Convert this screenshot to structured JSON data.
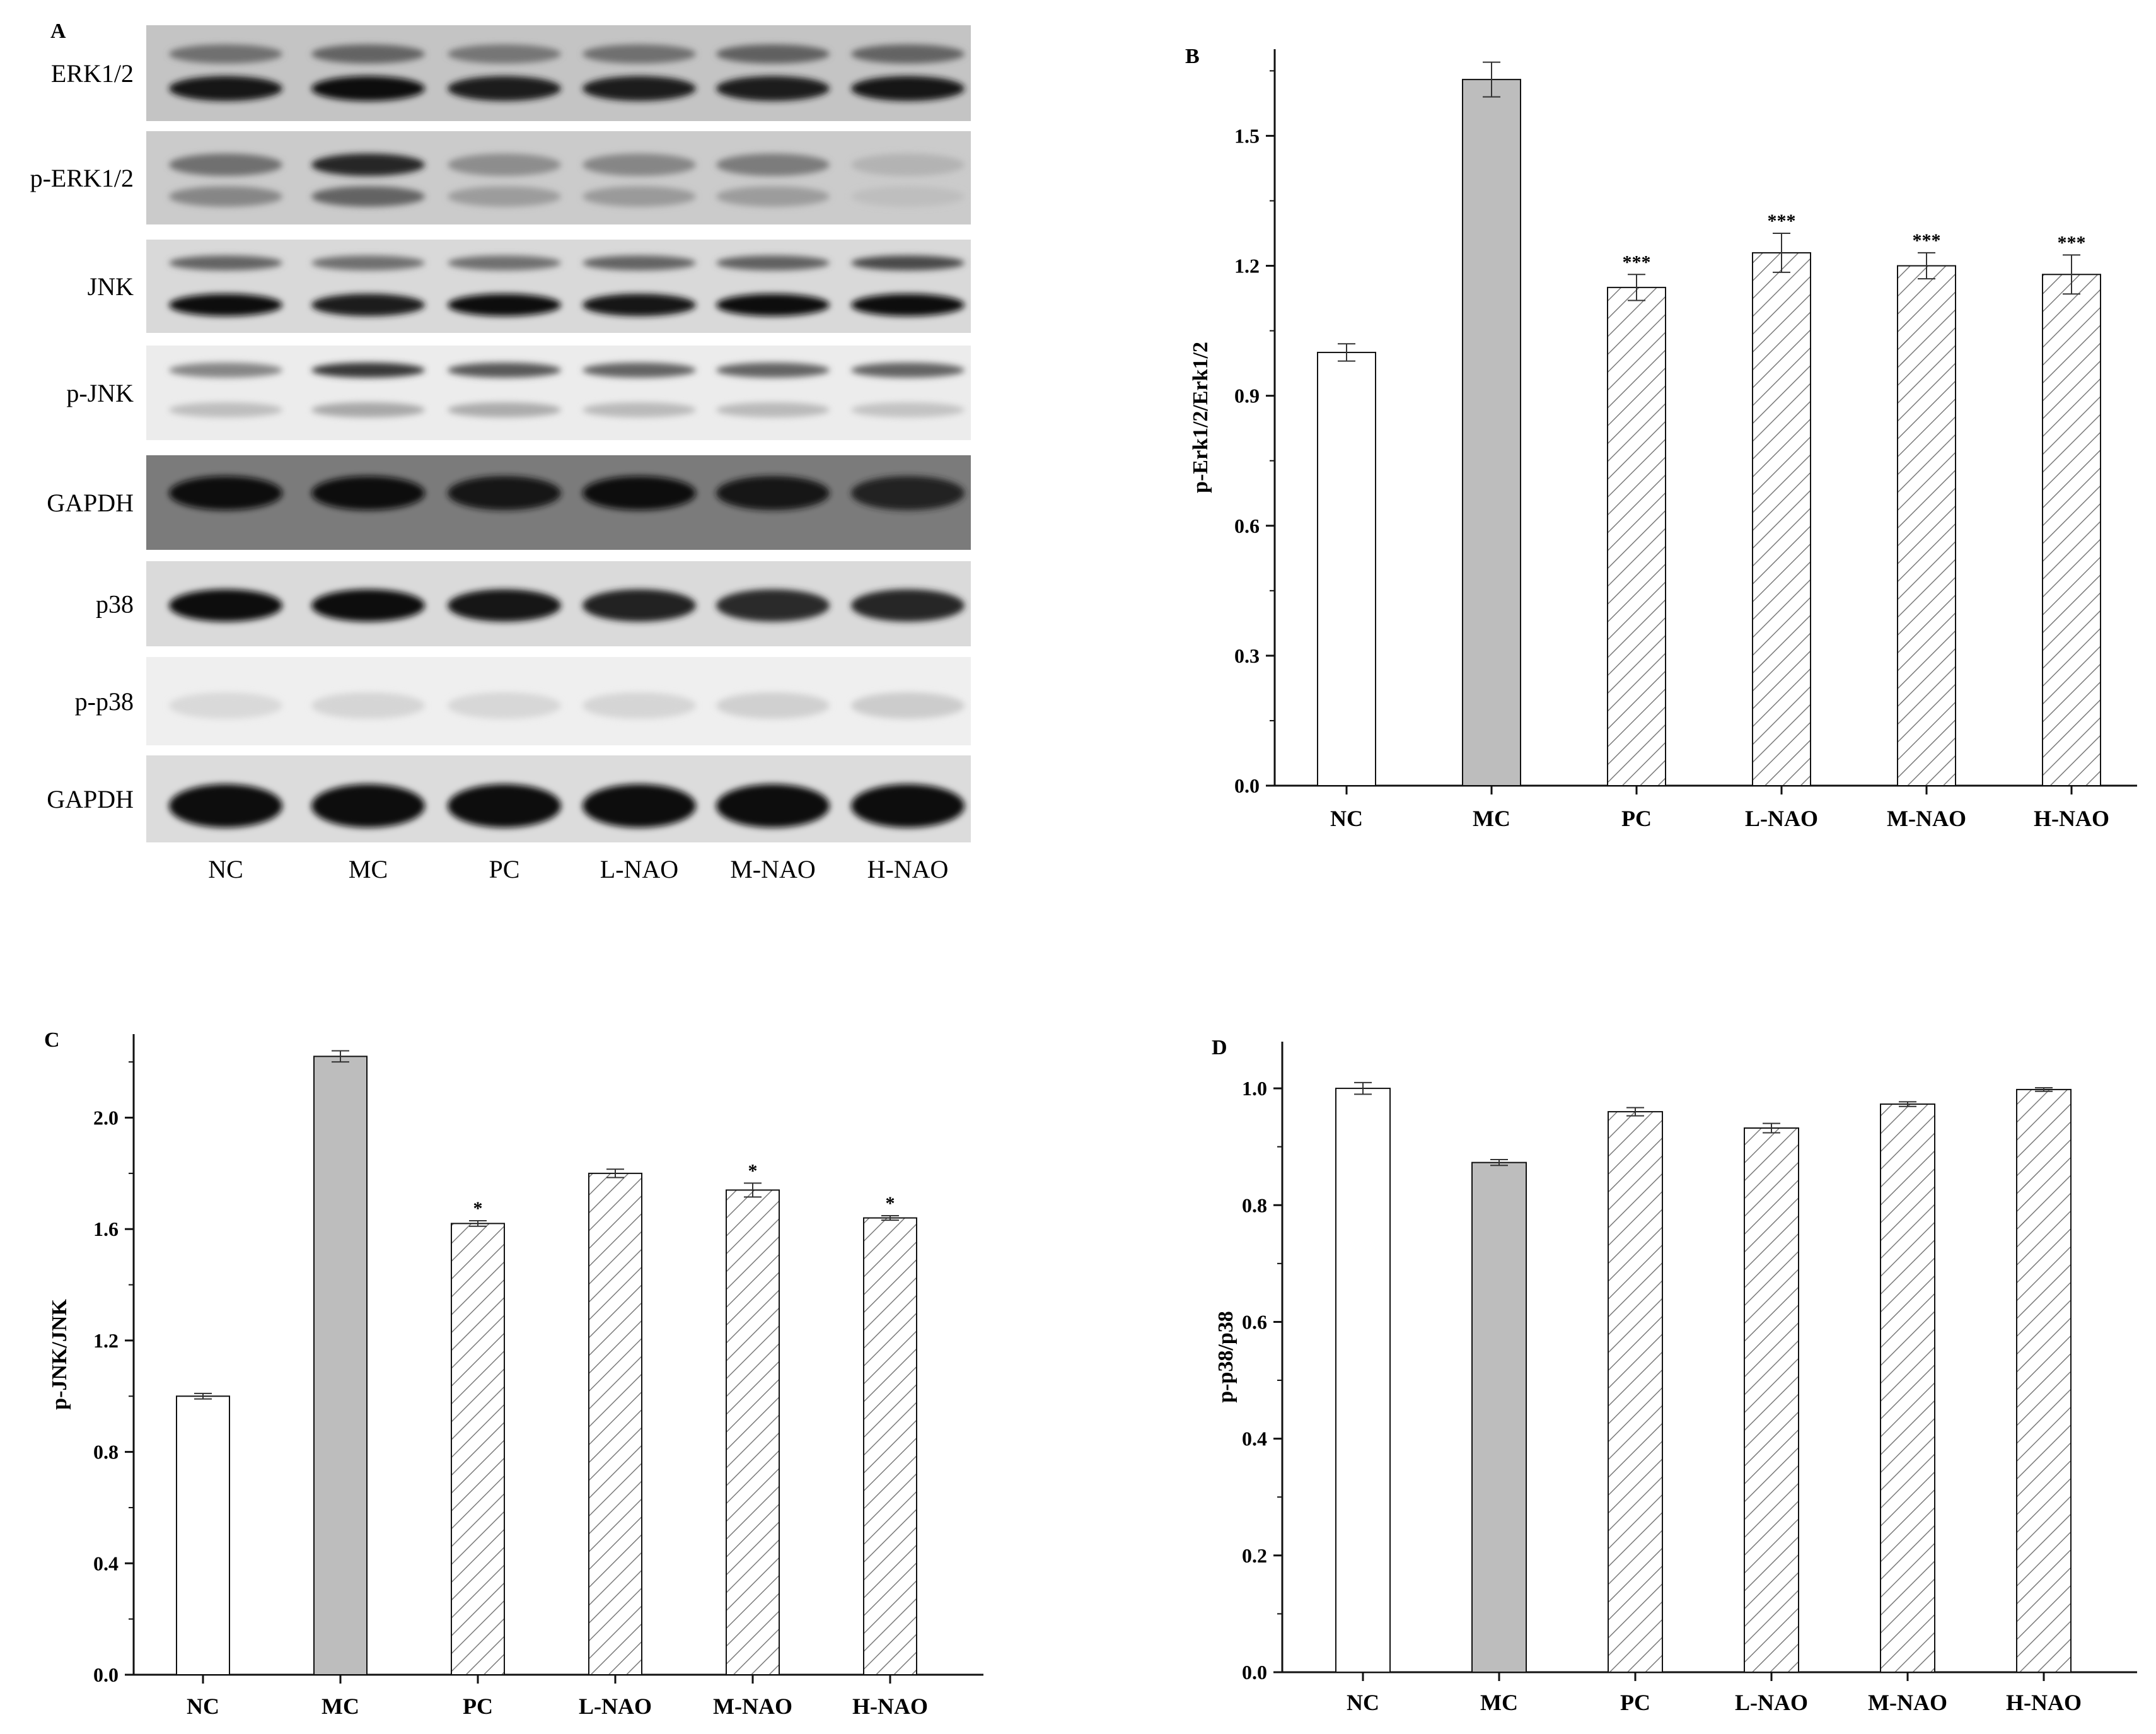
{
  "panel_a": {
    "letter": "A",
    "rows": [
      {
        "label": "ERK1/2",
        "bg": "#c4c4c4",
        "bands": [
          {
            "y": 0.3,
            "h": 0.2,
            "dark": [
              0.55,
              0.6,
              0.52,
              0.55,
              0.62,
              0.6
            ]
          },
          {
            "y": 0.66,
            "h": 0.26,
            "dark": [
              0.95,
              0.97,
              0.93,
              0.93,
              0.93,
              0.95
            ]
          }
        ]
      },
      {
        "label": "p-ERK1/2",
        "bg": "#cbcbcb",
        "bands": [
          {
            "y": 0.36,
            "h": 0.24,
            "dark": [
              0.55,
              0.88,
              0.42,
              0.45,
              0.5,
              0.25
            ]
          },
          {
            "y": 0.7,
            "h": 0.22,
            "dark": [
              0.45,
              0.6,
              0.35,
              0.36,
              0.35,
              0.2
            ]
          }
        ]
      },
      {
        "label": "JNK",
        "bg": "#d9d9d9",
        "bands": [
          {
            "y": 0.25,
            "h": 0.16,
            "dark": [
              0.6,
              0.55,
              0.55,
              0.6,
              0.62,
              0.72
            ]
          },
          {
            "y": 0.7,
            "h": 0.24,
            "dark": [
              0.97,
              0.93,
              0.97,
              0.95,
              0.97,
              0.98
            ]
          }
        ]
      },
      {
        "label": "p-JNK",
        "bg": "#ececec",
        "bands": [
          {
            "y": 0.26,
            "h": 0.16,
            "dark": [
              0.45,
              0.8,
              0.65,
              0.6,
              0.6,
              0.6
            ]
          },
          {
            "y": 0.68,
            "h": 0.16,
            "dark": [
              0.2,
              0.3,
              0.28,
              0.22,
              0.22,
              0.18
            ]
          }
        ]
      },
      {
        "label": "GAPDH",
        "bg": "#7b7b7b",
        "bands": [
          {
            "y": 0.4,
            "h": 0.36,
            "dark": [
              1.0,
              1.0,
              0.95,
              0.97,
              0.95,
              0.9
            ]
          }
        ]
      },
      {
        "label": "p38",
        "bg": "#dadada",
        "bands": [
          {
            "y": 0.52,
            "h": 0.38,
            "dark": [
              1.0,
              1.0,
              0.95,
              0.9,
              0.85,
              0.88
            ]
          }
        ]
      },
      {
        "label": "p-p38",
        "bg": "#efefef",
        "bands": [
          {
            "y": 0.55,
            "h": 0.3,
            "dark": [
              0.08,
              0.1,
              0.09,
              0.1,
              0.12,
              0.14
            ]
          }
        ]
      },
      {
        "label": "GAPDH",
        "bg": "#dcdcdc",
        "bands": [
          {
            "y": 0.58,
            "h": 0.5,
            "dark": [
              1.0,
              1.0,
              1.0,
              1.0,
              1.0,
              1.0
            ]
          }
        ]
      }
    ],
    "lanes": [
      "NC",
      "MC",
      "PC",
      "L-NAO",
      "M-NAO",
      "H-NAO"
    ]
  },
  "chart_data": [
    {
      "type": "bar",
      "panel": "B",
      "categories": [
        "NC",
        "MC",
        "PC",
        "L-NAO",
        "M-NAO",
        "H-NAO"
      ],
      "values": [
        1.0,
        1.63,
        1.15,
        1.23,
        1.2,
        1.18
      ],
      "errors": [
        0.02,
        0.04,
        0.03,
        0.045,
        0.03,
        0.045
      ],
      "significance": [
        "",
        "",
        "***",
        "***",
        "***",
        "***"
      ],
      "fills": [
        "white",
        "gray",
        "hatched",
        "hatched",
        "hatched",
        "hatched"
      ],
      "ylabel": "p-Erk1/2/Erk1/2",
      "ylim": [
        0,
        1.7
      ],
      "yticks": [
        0.0,
        0.3,
        0.6,
        0.9,
        1.2,
        1.5
      ],
      "ytick_labels": [
        "0.0",
        "0.3",
        "0.6",
        "0.9",
        "1.2",
        "1.5"
      ]
    },
    {
      "type": "bar",
      "panel": "C",
      "categories": [
        "NC",
        "MC",
        "PC",
        "L-NAO",
        "M-NAO",
        "H-NAO"
      ],
      "values": [
        1.0,
        2.22,
        1.62,
        1.8,
        1.74,
        1.64
      ],
      "errors": [
        0.01,
        0.02,
        0.01,
        0.015,
        0.025,
        0.008
      ],
      "significance": [
        "",
        "",
        "*",
        "",
        "*",
        "*"
      ],
      "fills": [
        "white",
        "gray",
        "hatched",
        "hatched",
        "hatched",
        "hatched"
      ],
      "ylabel": "p-JNK/JNK",
      "ylim": [
        0,
        2.3
      ],
      "yticks": [
        0.0,
        0.4,
        0.8,
        1.2,
        1.6,
        2.0
      ],
      "ytick_labels": [
        "0.0",
        "0.4",
        "0.8",
        "1.2",
        "1.6",
        "2.0"
      ]
    },
    {
      "type": "bar",
      "panel": "D",
      "categories": [
        "NC",
        "MC",
        "PC",
        "L-NAO",
        "M-NAO",
        "H-NAO"
      ],
      "values": [
        1.0,
        0.873,
        0.96,
        0.932,
        0.973,
        0.998
      ],
      "errors": [
        0.01,
        0.005,
        0.007,
        0.008,
        0.004,
        0.003
      ],
      "significance": [
        "",
        "",
        "",
        "",
        "",
        ""
      ],
      "fills": [
        "white",
        "gray",
        "hatched",
        "hatched",
        "hatched",
        "hatched"
      ],
      "ylabel": "p-p38/p38",
      "ylim": [
        0,
        1.08
      ],
      "yticks": [
        0.0,
        0.2,
        0.4,
        0.6,
        0.8,
        1.0
      ],
      "ytick_labels": [
        "0.0",
        "0.2",
        "0.4",
        "0.6",
        "0.8",
        "1.0"
      ]
    }
  ],
  "colors": {
    "white_bar": "#ffffff",
    "gray_bar": "#bdbdbd",
    "hatch": "#7a7a7a",
    "axis": "#111111"
  }
}
